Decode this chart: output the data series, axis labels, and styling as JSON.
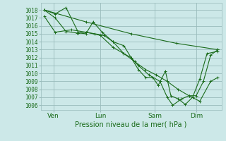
{
  "background_color": "#cce8e8",
  "grid_color": "#99bbbb",
  "line_color": "#1a6b1a",
  "marker_color": "#1a6b1a",
  "xlabel": "Pression niveau de la mer( hPa )",
  "yticks": [
    1006,
    1007,
    1008,
    1009,
    1010,
    1011,
    1012,
    1013,
    1014,
    1015,
    1016,
    1017,
    1018
  ],
  "ylim": [
    1005.4,
    1018.9
  ],
  "xlim": [
    0,
    1
  ],
  "xtick_labels": [
    "Ven",
    "Lun",
    "Sam",
    "Dim"
  ],
  "xtick_positions": [
    0.07,
    0.33,
    0.63,
    0.86
  ],
  "series": [
    {
      "x": [
        0.02,
        0.25,
        0.5,
        0.75,
        0.98
      ],
      "y": [
        1018.0,
        1016.5,
        1015.0,
        1013.8,
        1013.0
      ]
    },
    {
      "x": [
        0.02,
        0.08,
        0.14,
        0.21,
        0.25,
        0.29,
        0.34,
        0.4,
        0.46,
        0.5,
        0.54,
        0.58,
        0.62,
        0.65,
        0.69,
        0.72,
        0.76,
        0.8,
        0.84,
        0.88,
        0.92,
        0.98
      ],
      "y": [
        1018.0,
        1017.5,
        1018.3,
        1015.1,
        1015.0,
        1016.5,
        1015.2,
        1014.0,
        1013.5,
        1012.0,
        1010.5,
        1009.5,
        1009.5,
        1008.5,
        1010.3,
        1007.2,
        1006.8,
        1006.1,
        1007.0,
        1009.3,
        1012.5,
        1012.8
      ]
    },
    {
      "x": [
        0.02,
        0.08,
        0.17,
        0.25,
        0.33,
        0.4,
        0.46,
        0.52,
        0.58,
        0.64,
        0.7,
        0.76,
        0.82,
        0.88,
        0.94,
        0.98
      ],
      "y": [
        1017.2,
        1015.2,
        1015.5,
        1015.2,
        1014.8,
        1013.3,
        1012.5,
        1011.5,
        1010.5,
        1009.8,
        1009.0,
        1008.0,
        1007.2,
        1006.5,
        1009.0,
        1009.5
      ]
    },
    {
      "x": [
        0.02,
        0.08,
        0.14,
        0.2,
        0.25,
        0.3,
        0.35,
        0.4,
        0.46,
        0.5,
        0.54,
        0.6,
        0.66,
        0.7,
        0.73,
        0.78,
        0.82,
        0.86,
        0.9,
        0.94,
        0.98
      ],
      "y": [
        1018.0,
        1017.0,
        1015.3,
        1015.1,
        1015.2,
        1015.0,
        1014.8,
        1014.0,
        1012.5,
        1012.0,
        1011.0,
        1009.8,
        1009.0,
        1007.0,
        1006.0,
        1006.8,
        1007.2,
        1007.2,
        1009.0,
        1012.3,
        1013.0
      ]
    }
  ]
}
